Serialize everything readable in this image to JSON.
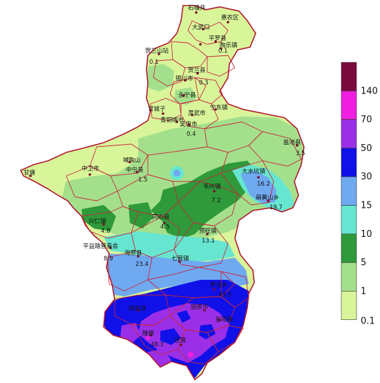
{
  "legend": {
    "items": [
      {
        "label": "140",
        "color": "#7a0a3c"
      },
      {
        "label": "70",
        "color": "#f01ee0"
      },
      {
        "label": "50",
        "color": "#9b2fe8"
      },
      {
        "label": "30",
        "color": "#1010e8"
      },
      {
        "label": "15",
        "color": "#6fa9f0"
      },
      {
        "label": "10",
        "color": "#66e6d0"
      },
      {
        "label": "5",
        "color": "#2e9a3a"
      },
      {
        "label": "1",
        "color": "#a4e08c"
      },
      {
        "label": "0.1",
        "color": "#d9f59a"
      }
    ]
  },
  "places": [
    {
      "name": "石嘴井"
    },
    {
      "name": "惠农区"
    },
    {
      "name": "大武口"
    },
    {
      "name": "平罗县"
    },
    {
      "name": "陶乐镇"
    },
    {
      "name": "贺兰山站"
    },
    {
      "name": "贺兰县"
    },
    {
      "name": "银川市"
    },
    {
      "name": "永宁县"
    },
    {
      "name": "宁东镇"
    },
    {
      "name": "甘城子"
    },
    {
      "name": "灵武市"
    },
    {
      "name": "青铜峡市"
    },
    {
      "name": "吴忠市"
    },
    {
      "name": "盐池县"
    },
    {
      "name": "甘塘"
    },
    {
      "name": "中卫市"
    },
    {
      "name": "中宁县"
    },
    {
      "name": "喊陶山"
    },
    {
      "name": "大水坑镇"
    },
    {
      "name": "韦州镇"
    },
    {
      "name": "麻黄山乡"
    },
    {
      "name": "兴仁镇"
    },
    {
      "name": "同心县"
    },
    {
      "name": "预旺镇"
    },
    {
      "name": "平益踏营奏会"
    },
    {
      "name": "海原县"
    },
    {
      "name": "七营镇"
    },
    {
      "name": "罗洼乡"
    },
    {
      "name": "固原市"
    },
    {
      "name": "彭阳县"
    },
    {
      "name": "西吉县"
    },
    {
      "name": "隆德"
    },
    {
      "name": "泾源"
    }
  ],
  "values": [
    {
      "text": "0.1"
    },
    {
      "text": "0.1"
    },
    {
      "text": "0.3"
    },
    {
      "text": "0.4"
    },
    {
      "text": "3.5"
    },
    {
      "text": "1.5"
    },
    {
      "text": "16.2"
    },
    {
      "text": "7.2"
    },
    {
      "text": "19.7"
    },
    {
      "text": "4.8"
    },
    {
      "text": "4.5"
    },
    {
      "text": "13.1"
    },
    {
      "text": "8.9"
    },
    {
      "text": "23.4"
    },
    {
      "text": "43.3"
    },
    {
      "text": "48.3"
    }
  ]
}
